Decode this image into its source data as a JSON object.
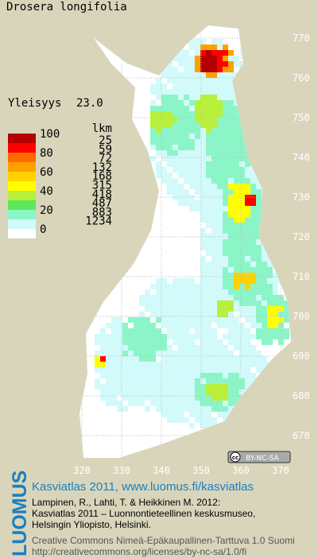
{
  "title": "Drosera longifolia",
  "frequency": {
    "label": "Yleisyys",
    "value": "23.0"
  },
  "legend": {
    "scale_labels": [
      "100",
      "80",
      "60",
      "40",
      "20",
      "0"
    ],
    "count_header": "lkm",
    "counts": [
      "25",
      "59",
      "72",
      "132",
      "168",
      "315",
      "418",
      "487",
      "883",
      "1234"
    ],
    "colors": [
      "#b40000",
      "#ff0000",
      "#ff6a00",
      "#ffa000",
      "#ffd200",
      "#ffff00",
      "#b8f03c",
      "#5ee85a",
      "#8cf5c8",
      "#d2fafa",
      "#ffffff"
    ]
  },
  "axes": {
    "x_labels": [
      "320",
      "330",
      "340",
      "350",
      "360",
      "370"
    ],
    "y_labels": [
      "770",
      "760",
      "750",
      "740",
      "730",
      "720",
      "710",
      "700",
      "690",
      "680",
      "670"
    ]
  },
  "license_badge": "BY-NC-SA",
  "footer": {
    "logo": "LUOMUS",
    "link": "Kasviatlas 2011, www.luomus.fi/kasviatlas",
    "citation": [
      "Lampinen, R., Lahti, T. & Heikkinen M. 2012:",
      "Kasviatlas 2011 – Luonnontieteellinen keskusmuseo,",
      "Helsingin Yliopisto, Helsinki."
    ],
    "license": [
      "Creative Commons Nimeä-Epäkaupallinen-Tarttuva 1.0 Suomi",
      "http://creativecommons.org/licenses/by-nc-sa/1.0/fi"
    ]
  }
}
